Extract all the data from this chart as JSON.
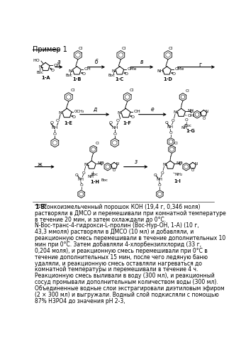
{
  "title": "Пример 1",
  "bg_color": "#ffffff",
  "figure_width": 3.4,
  "figure_height": 5.0,
  "dpi": 100,
  "paragraph_label": "1-В:",
  "paragraph_text": "Тонкоизмельченный порошок КОН (19,4 г, 0,346 моля) растворяли в ДМСО и перемешивали при комнатной температуре в течение 20 мин, и затем охлаждали до 0°С. N-Boc-транс-4-гидрокси-L-пролин (Boc-Hyp-OH, 1-А) (10 г, 43,3 ммоля) растворяли в ДМСО (10 мл) и добавляли, и реакционную смесь перемешивали в течение дополнительных 10 мин при 0°С. Затем добавляли 4-хлорбензилхлорид (33 г, 0,204 моля), и реакционную смесь перемешивали при 0°С в течение дополнительных 15 мин, после чего ледяную баню удаляли, и реакционную смесь оставляли нагреваться до комнатной температуры и перемешивали в течение 4 ч. Реакционную смесь выливали в воду (300 мл), и реакционный сосуд промывали дополнительным количеством воды (300 мл). Объединенные водные слои экстрагировали диэтиловым эфиром (2 × 300 мл) и выгружали. Водный слой подкисляли с помощью 87% H3PO4 до значения pH 2-3,"
}
